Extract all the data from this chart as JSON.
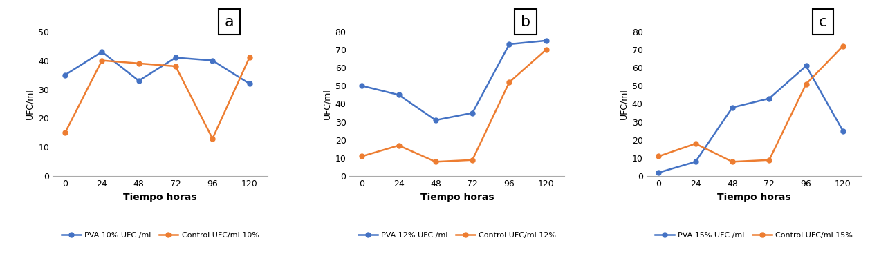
{
  "x": [
    0,
    24,
    48,
    72,
    96,
    120
  ],
  "chart_a": {
    "label": "a",
    "pva_values": [
      35,
      43,
      33,
      41,
      40,
      32
    ],
    "control_values": [
      15,
      40,
      39,
      38,
      13,
      41
    ],
    "ylim": [
      0,
      50
    ],
    "yticks": [
      0,
      10,
      20,
      30,
      40,
      50
    ],
    "pva_label": "PVA 10% UFC /ml",
    "control_label": "Control UFC/ml 10%"
  },
  "chart_b": {
    "label": "b",
    "pva_values": [
      50,
      45,
      31,
      35,
      73,
      75
    ],
    "control_values": [
      11,
      17,
      8,
      9,
      52,
      70
    ],
    "ylim": [
      0,
      80
    ],
    "yticks": [
      0,
      10,
      20,
      30,
      40,
      50,
      60,
      70,
      80
    ],
    "pva_label": "PVA 12% UFC /ml",
    "control_label": "Control UFC/ml 12%"
  },
  "chart_c": {
    "label": "c",
    "pva_values": [
      2,
      8,
      38,
      43,
      61,
      25
    ],
    "control_values": [
      11,
      18,
      8,
      9,
      51,
      72
    ],
    "ylim": [
      0,
      80
    ],
    "yticks": [
      0,
      10,
      20,
      30,
      40,
      50,
      60,
      70,
      80
    ],
    "pva_label": "PVA 15% UFC /ml",
    "control_label": "Control UFC/ml 15%"
  },
  "xlabel": "Tiempo horas",
  "ylabel": "UFC/ml",
  "pva_color": "#4472C4",
  "control_color": "#ED7D31",
  "marker": "o",
  "linewidth": 1.8,
  "markersize": 5,
  "background_color": "#FFFFFF",
  "tick_fontsize": 9,
  "xlabel_fontsize": 10,
  "ylabel_fontsize": 9,
  "legend_fontsize": 8
}
